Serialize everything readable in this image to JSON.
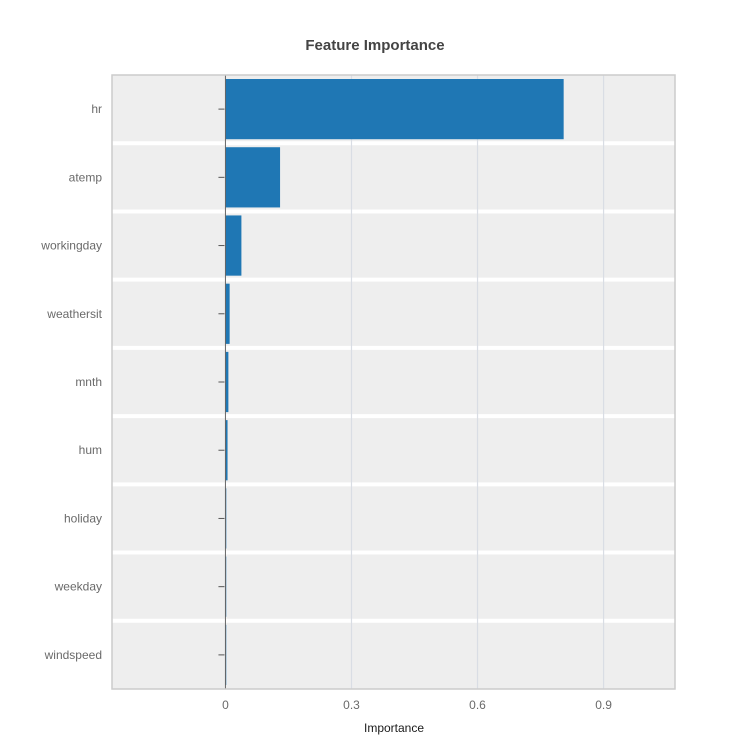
{
  "chart_data": {
    "type": "bar",
    "orientation": "horizontal",
    "title": "Feature Importance",
    "xlabel": "Importance",
    "ylabel": "",
    "categories": [
      "hr",
      "atemp",
      "workingday",
      "weathersit",
      "mnth",
      "hum",
      "holiday",
      "weekday",
      "windspeed"
    ],
    "values": [
      0.805,
      0.13,
      0.038,
      0.01,
      0.007,
      0.005,
      0.002,
      0.0015,
      0.001
    ],
    "xlim": [
      -0.27,
      1.07
    ],
    "xticks": [
      0,
      0.3,
      0.6,
      0.9
    ],
    "xtick_labels": [
      "0",
      "0.3",
      "0.6",
      "0.9"
    ],
    "grid": true,
    "legend": "none",
    "colors": {
      "bar": "#1f77b4",
      "panel_background": "#eeeeee",
      "band_separator": "#ffffff",
      "grid": "#d9dde4",
      "frame": "#cccccc"
    }
  }
}
